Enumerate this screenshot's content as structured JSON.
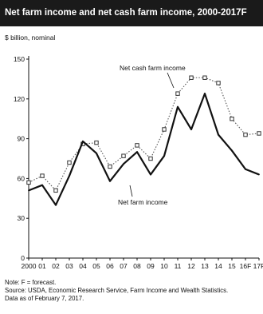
{
  "chart_data": {
    "type": "line",
    "title": "Net farm income and net cash farm income, 2000-2017F",
    "ylabel": "$ billion, nominal",
    "xlabel": "",
    "x": [
      "2000",
      "01",
      "02",
      "03",
      "04",
      "05",
      "06",
      "07",
      "08",
      "09",
      "10",
      "11",
      "12",
      "13",
      "14",
      "15",
      "16F",
      "17F"
    ],
    "ylim": [
      0,
      150
    ],
    "yticks": [
      0,
      30,
      60,
      90,
      120,
      150
    ],
    "grid": false,
    "legend": "inline labels",
    "series": [
      {
        "name": "Net cash farm income",
        "style": "dotted with square markers",
        "color": "#555555",
        "values": [
          57,
          62,
          51,
          72,
          86,
          87,
          69,
          77,
          85,
          75,
          97,
          124,
          136,
          136,
          132,
          105,
          93,
          94
        ]
      },
      {
        "name": "Net farm income",
        "style": "solid",
        "color": "#111111",
        "values": [
          51,
          55,
          40,
          62,
          88,
          79,
          58,
          71,
          80,
          63,
          77,
          114,
          97,
          124,
          93,
          81,
          67,
          63
        ]
      }
    ],
    "annotations": [
      "Net cash farm income",
      "Net farm income"
    ]
  },
  "notes": {
    "line1": "Note: F = forecast.",
    "line2": "Source: USDA, Economic Research Service, Farm Income and Wealth Statistics.",
    "line3": "Data as of February 7, 2017."
  }
}
